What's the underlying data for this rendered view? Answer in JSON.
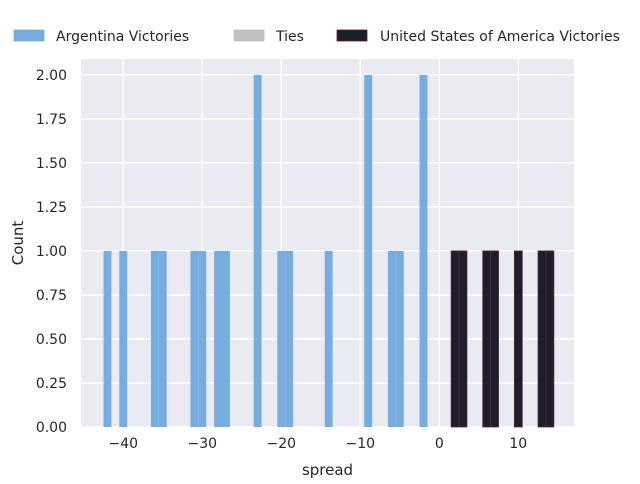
{
  "chart_data": {
    "type": "bar",
    "title": "",
    "xlabel": "spread",
    "ylabel": "Count",
    "xlim": [
      -45.35,
      17.05
    ],
    "ylim": [
      0,
      2.09
    ],
    "grid": true,
    "legend_placement": "top",
    "bin_width": 1,
    "xticks": [
      -40,
      -30,
      -20,
      -10,
      0,
      10
    ],
    "xtick_labels": [
      "−40",
      "−30",
      "−20",
      "−10",
      "0",
      "10"
    ],
    "yticks": [
      0,
      0.25,
      0.5,
      0.75,
      1.0,
      1.25,
      1.5,
      1.75,
      2.0
    ],
    "ytick_labels": [
      "0.00",
      "0.25",
      "0.50",
      "0.75",
      "1.00",
      "1.25",
      "1.50",
      "1.75",
      "2.00"
    ],
    "series": [
      {
        "name": "Argentina Victories",
        "color": "#77acdf",
        "edge": "#77acdf",
        "bins": [
          [
            -42,
            1
          ],
          [
            -40,
            1
          ],
          [
            -36,
            1
          ],
          [
            -35,
            1
          ],
          [
            -31,
            1
          ],
          [
            -30,
            1
          ],
          [
            -28,
            1
          ],
          [
            -27,
            1
          ],
          [
            -23,
            2
          ],
          [
            -20,
            1
          ],
          [
            -19,
            1
          ],
          [
            -14,
            1
          ],
          [
            -9,
            2
          ],
          [
            -6,
            1
          ],
          [
            -5,
            1
          ],
          [
            -2,
            2
          ]
        ]
      },
      {
        "name": "Ties",
        "color": "#c0c0c0",
        "edge": "#c0c0c0",
        "bins": []
      },
      {
        "name": "United States of America Victories",
        "color": "#1a1f2e",
        "edge": "#6b1f2f",
        "bins": [
          [
            2,
            1
          ],
          [
            3,
            1
          ],
          [
            6,
            1
          ],
          [
            7,
            1
          ],
          [
            10,
            1
          ],
          [
            13,
            1
          ],
          [
            14,
            1
          ]
        ]
      }
    ]
  }
}
